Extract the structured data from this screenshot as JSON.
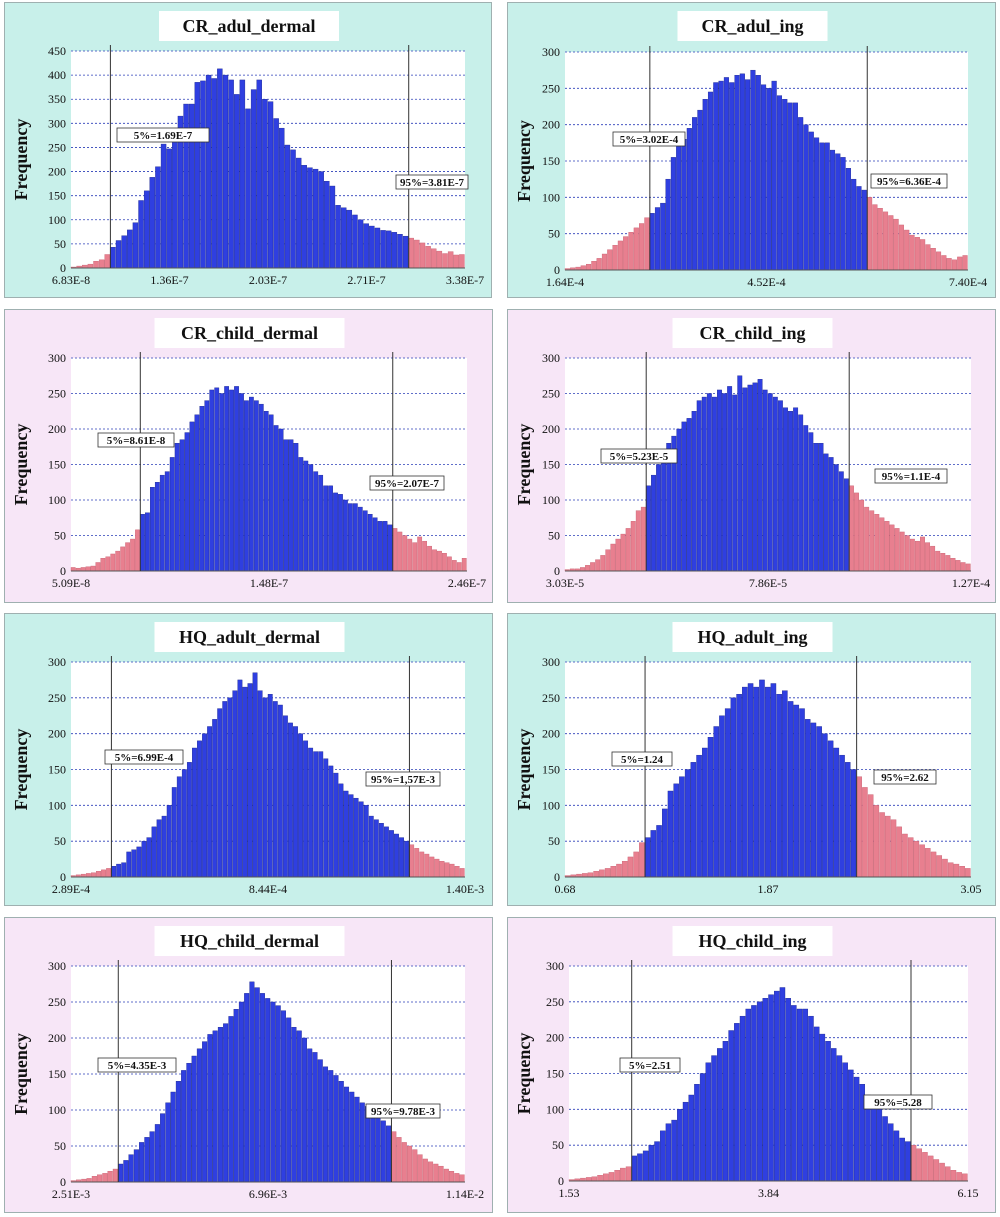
{
  "chart_data": [
    {
      "type": "bar",
      "title": "CR_adul_dermal",
      "ylabel": "Frequency",
      "ylim": [
        0,
        450
      ],
      "yticks": [
        0,
        50,
        100,
        150,
        200,
        250,
        300,
        350,
        400,
        450
      ],
      "xtick_labels": [
        "6.83E-8",
        "1.36E-7",
        "2.03E-7",
        "2.71E-7",
        "3.38E-7"
      ],
      "p5_label": "5%=1.69E-7",
      "p95_label": "95%=3.81E-7",
      "background": "#c8f0ea",
      "values": [
        2,
        4,
        6,
        8,
        14,
        17,
        28,
        43,
        57,
        67,
        79,
        94,
        140,
        160,
        188,
        210,
        257,
        247,
        289,
        315,
        340,
        340,
        385,
        388,
        400,
        393,
        413,
        400,
        390,
        360,
        390,
        330,
        370,
        390,
        350,
        345,
        310,
        290,
        255,
        245,
        228,
        213,
        208,
        205,
        200,
        180,
        170,
        130,
        125,
        120,
        110,
        100,
        92,
        87,
        83,
        78,
        77,
        74,
        70,
        66,
        62,
        58,
        52,
        45,
        40,
        35,
        30,
        34,
        27,
        28
      ]
    },
    {
      "type": "bar",
      "title": "CR_adul_ing",
      "ylabel": "Frequency",
      "ylim": [
        0,
        300
      ],
      "yticks": [
        0,
        50,
        100,
        150,
        200,
        250,
        300
      ],
      "xtick_labels": [
        "1.64E-4",
        "4.52E-4",
        "7.40E-4"
      ],
      "p5_label": "5%=3.02E-4",
      "p95_label": "95%=6.36E-4",
      "background": "#c8f0ea",
      "values": [
        2,
        3,
        4,
        6,
        8,
        12,
        16,
        22,
        28,
        34,
        40,
        46,
        52,
        58,
        64,
        72,
        78,
        86,
        92,
        125,
        155,
        170,
        180,
        195,
        210,
        220,
        235,
        245,
        258,
        260,
        265,
        258,
        268,
        270,
        262,
        275,
        268,
        255,
        250,
        260,
        240,
        235,
        230,
        230,
        210,
        200,
        190,
        182,
        175,
        175,
        165,
        160,
        155,
        140,
        125,
        115,
        110,
        100,
        90,
        85,
        80,
        75,
        70,
        62,
        55,
        48,
        45,
        42,
        35,
        30,
        25,
        20,
        16,
        14,
        18,
        20
      ]
    },
    {
      "type": "bar",
      "title": "CR_child_dermal",
      "ylabel": "Frequency",
      "ylim": [
        0,
        300
      ],
      "yticks": [
        0,
        50,
        100,
        150,
        200,
        250,
        300
      ],
      "xtick_labels": [
        "5.09E-8",
        "1.48E-7",
        "2.46E-7"
      ],
      "p5_label": "5%=8.61E-8",
      "p95_label": "95%=2.07E-7",
      "background": "#f7e6f7",
      "values": [
        5,
        4,
        5,
        6,
        7,
        12,
        18,
        20,
        24,
        28,
        34,
        40,
        45,
        58,
        80,
        82,
        118,
        125,
        135,
        140,
        160,
        180,
        185,
        195,
        210,
        220,
        232,
        240,
        255,
        258,
        250,
        260,
        255,
        260,
        250,
        240,
        245,
        240,
        235,
        225,
        220,
        205,
        200,
        185,
        185,
        180,
        160,
        155,
        150,
        140,
        135,
        120,
        120,
        110,
        108,
        100,
        95,
        95,
        90,
        85,
        80,
        75,
        70,
        70,
        65,
        60,
        55,
        50,
        45,
        40,
        48,
        42,
        35,
        30,
        28,
        25,
        20,
        15,
        12,
        18
      ]
    },
    {
      "type": "bar",
      "title": "CR_child_ing",
      "ylabel": "Frequency",
      "ylim": [
        0,
        300
      ],
      "yticks": [
        0,
        50,
        100,
        150,
        200,
        250,
        300
      ],
      "xtick_labels": [
        "3.03E-5",
        "7.86E-5",
        "1.27E-4"
      ],
      "p5_label": "5%=5.23E-5",
      "p95_label": "95%=1.1E-4",
      "background": "#f7e6f7",
      "values": [
        2,
        3,
        3,
        5,
        8,
        12,
        16,
        22,
        30,
        38,
        45,
        52,
        60,
        70,
        85,
        90,
        120,
        135,
        150,
        165,
        180,
        190,
        200,
        210,
        215,
        225,
        240,
        245,
        250,
        245,
        255,
        250,
        260,
        248,
        275,
        258,
        262,
        265,
        270,
        255,
        250,
        245,
        240,
        230,
        225,
        230,
        220,
        205,
        195,
        180,
        180,
        165,
        160,
        150,
        140,
        130,
        120,
        110,
        100,
        90,
        85,
        80,
        75,
        70,
        65,
        60,
        55,
        50,
        45,
        42,
        48,
        40,
        35,
        28,
        25,
        22,
        18,
        15,
        12,
        10
      ]
    },
    {
      "type": "bar",
      "title": "HQ_adult_dermal",
      "ylabel": "Frequency",
      "ylim": [
        0,
        300
      ],
      "yticks": [
        0,
        50,
        100,
        150,
        200,
        250,
        300
      ],
      "xtick_labels": [
        "2.89E-4",
        "8.44E-4",
        "1.40E-3"
      ],
      "p5_label": "5%=6.99E-4",
      "p95_label": "95%=1,57E-3",
      "background": "#c8f0ea",
      "values": [
        2,
        3,
        4,
        5,
        6,
        8,
        10,
        12,
        15,
        18,
        20,
        35,
        38,
        42,
        50,
        55,
        70,
        80,
        85,
        100,
        125,
        140,
        150,
        160,
        180,
        190,
        200,
        210,
        220,
        235,
        245,
        250,
        260,
        275,
        265,
        270,
        285,
        260,
        250,
        255,
        245,
        240,
        225,
        215,
        210,
        200,
        190,
        180,
        175,
        175,
        165,
        155,
        145,
        130,
        120,
        115,
        110,
        105,
        100,
        85,
        80,
        75,
        70,
        65,
        60,
        55,
        50,
        45,
        40,
        35,
        32,
        28,
        25,
        22,
        20,
        18,
        15,
        12
      ]
    },
    {
      "type": "bar",
      "title": "HQ_adult_ing",
      "ylabel": "Frequency",
      "ylim": [
        0,
        300
      ],
      "yticks": [
        0,
        50,
        100,
        150,
        200,
        250,
        300
      ],
      "xtick_labels": [
        "0.68",
        "1.87",
        "3.05"
      ],
      "p5_label": "5%=1.24",
      "p95_label": "95%=2.62",
      "background": "#c8f0ea",
      "values": [
        2,
        3,
        4,
        5,
        6,
        8,
        10,
        12,
        15,
        18,
        22,
        28,
        35,
        48,
        55,
        65,
        72,
        95,
        120,
        130,
        140,
        150,
        160,
        170,
        180,
        195,
        210,
        225,
        235,
        250,
        255,
        265,
        270,
        265,
        275,
        265,
        270,
        255,
        260,
        245,
        240,
        235,
        220,
        215,
        210,
        200,
        190,
        180,
        170,
        160,
        150,
        140,
        125,
        115,
        100,
        90,
        85,
        80,
        70,
        60,
        55,
        50,
        45,
        40,
        35,
        30,
        25,
        20,
        18,
        15,
        12
      ]
    },
    {
      "type": "bar",
      "title": "HQ_child_dermal",
      "ylabel": "Frequency",
      "ylim": [
        0,
        300
      ],
      "yticks": [
        0,
        50,
        100,
        150,
        200,
        250,
        300
      ],
      "xtick_labels": [
        "2.51E-3",
        "6.96E-3",
        "1.14E-2"
      ],
      "p5_label": "5%=4.35E-3",
      "p95_label": "95%=9.78E-3",
      "background": "#f7e6f7",
      "values": [
        2,
        3,
        4,
        5,
        8,
        10,
        12,
        15,
        18,
        25,
        30,
        38,
        45,
        55,
        62,
        70,
        80,
        95,
        110,
        125,
        140,
        155,
        165,
        175,
        185,
        195,
        205,
        210,
        215,
        220,
        230,
        240,
        250,
        262,
        278,
        270,
        262,
        255,
        250,
        245,
        238,
        228,
        215,
        210,
        200,
        185,
        180,
        170,
        160,
        155,
        148,
        140,
        132,
        125,
        118,
        110,
        105,
        100,
        92,
        85,
        78,
        70,
        62,
        55,
        50,
        45,
        38,
        32,
        28,
        25,
        22,
        18,
        15,
        12,
        10
      ]
    },
    {
      "type": "bar",
      "title": "HQ_child_ing",
      "ylabel": "Frequency",
      "ylim": [
        0,
        300
      ],
      "yticks": [
        0,
        50,
        100,
        150,
        200,
        250,
        300
      ],
      "xtick_labels": [
        "1.53",
        "3.84",
        "6.15"
      ],
      "p5_label": "5%=2.51",
      "p95_label": "95%=5.28",
      "background": "#f7e6f7",
      "values": [
        2,
        3,
        4,
        5,
        6,
        8,
        10,
        12,
        15,
        18,
        20,
        35,
        38,
        42,
        50,
        55,
        70,
        80,
        85,
        100,
        110,
        120,
        135,
        150,
        165,
        175,
        185,
        195,
        210,
        220,
        230,
        240,
        245,
        250,
        255,
        260,
        265,
        270,
        255,
        245,
        240,
        240,
        230,
        215,
        205,
        195,
        185,
        175,
        165,
        155,
        145,
        135,
        120,
        110,
        100,
        90,
        80,
        70,
        60,
        55,
        50,
        45,
        40,
        35,
        30,
        25,
        20,
        15,
        12,
        10
      ]
    }
  ]
}
